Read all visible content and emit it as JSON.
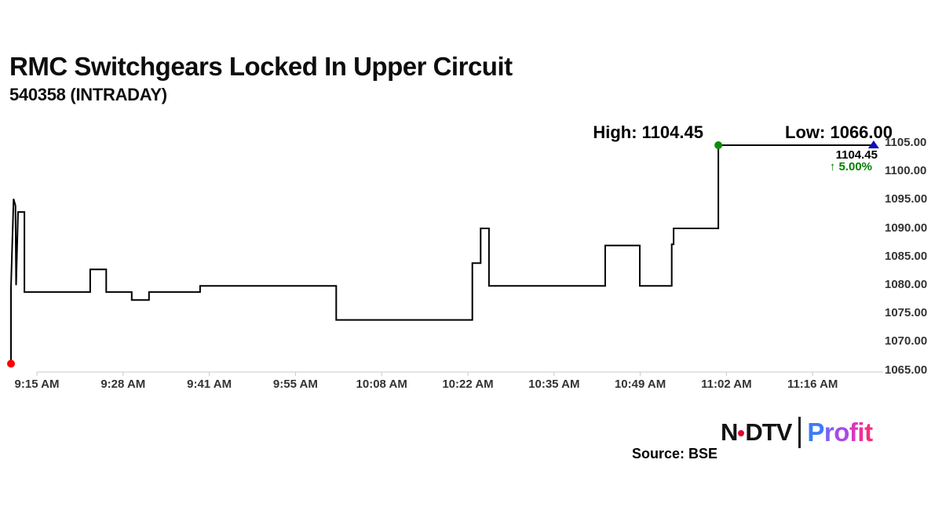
{
  "header": {
    "title": "RMC Switchgears Locked In Upper Circuit",
    "subtitle": "540358 (INTRADAY)"
  },
  "annotations": {
    "high_label": "High: 1104.45",
    "low_label": "Low: 1066.00",
    "last_price_label": "1104.45",
    "change_label": "↑ 5.00%"
  },
  "footer": {
    "source": "Source: BSE",
    "logo": {
      "ndtv_n": "N",
      "ndtv_dtv": "DTV",
      "profit_letters": [
        {
          "ch": "P",
          "color": "#3d7bf7"
        },
        {
          "ch": "r",
          "color": "#7a63f2"
        },
        {
          "ch": "o",
          "color": "#a94ae4"
        },
        {
          "ch": "f",
          "color": "#d838c0"
        },
        {
          "ch": "i",
          "color": "#ee2f9a"
        },
        {
          "ch": "t",
          "color": "#f42e7f"
        }
      ]
    }
  },
  "colors": {
    "price_line": "#000000",
    "open_marker_red": "#ff0000",
    "high_marker_green": "#0b8f0b",
    "last_marker_blue": "#0d0dbb",
    "change_green": "#008000",
    "axis_line_gray": "#c9c9c9",
    "axis_text_gray": "#333333"
  },
  "chart_data": {
    "type": "line",
    "title": "RMC Switchgears (540358) intraday price",
    "open_time": "9:15 AM",
    "time_base": "points are [minutes after 09:15 AM, price in INR]",
    "x_tick_labels": [
      "9:15 AM",
      "9:28 AM",
      "9:41 AM",
      "9:55 AM",
      "10:08 AM",
      "10:22 AM",
      "10:35 AM",
      "10:49 AM",
      "11:02 AM",
      "11:16 AM"
    ],
    "y_tick_labels": [
      "1105.00",
      "1100.00",
      "1095.00",
      "1090.00",
      "1085.00",
      "1080.00",
      "1075.00",
      "1070.00",
      "1065.00"
    ],
    "ylim": [
      1065,
      1105
    ],
    "high": 1104.45,
    "low": 1066.0,
    "last": 1104.45,
    "change_pct": 5.0,
    "upper_circuit": true,
    "series": [
      {
        "name": "price",
        "points": [
          [
            0,
            1066.0
          ],
          [
            0,
            1079.5
          ],
          [
            0.4,
            1095.0
          ],
          [
            0.7,
            1093.8
          ],
          [
            0.8,
            1079.8
          ],
          [
            1.1,
            1092.7
          ],
          [
            2.1,
            1092.7
          ],
          [
            2.1,
            1078.6
          ],
          [
            12.4,
            1078.6
          ],
          [
            12.4,
            1082.6
          ],
          [
            14.9,
            1082.6
          ],
          [
            14.9,
            1078.6
          ],
          [
            18.9,
            1078.6
          ],
          [
            18.9,
            1077.2
          ],
          [
            21.6,
            1077.2
          ],
          [
            21.6,
            1078.6
          ],
          [
            29.6,
            1078.6
          ],
          [
            29.6,
            1079.7
          ],
          [
            50.9,
            1079.7
          ],
          [
            50.9,
            1073.7
          ],
          [
            72.2,
            1073.7
          ],
          [
            72.2,
            1083.7
          ],
          [
            73.5,
            1083.7
          ],
          [
            73.5,
            1089.8
          ],
          [
            74.8,
            1089.8
          ],
          [
            74.8,
            1079.7
          ],
          [
            93.0,
            1079.7
          ],
          [
            93.0,
            1086.8
          ],
          [
            98.4,
            1086.8
          ],
          [
            98.4,
            1079.7
          ],
          [
            103.4,
            1079.7
          ],
          [
            103.4,
            1087.0
          ],
          [
            103.7,
            1087.0
          ],
          [
            103.7,
            1089.8
          ],
          [
            110.7,
            1089.8
          ],
          [
            110.7,
            1104.45
          ],
          [
            135,
            1104.45
          ]
        ]
      }
    ],
    "markers": [
      {
        "name": "open-low-marker",
        "shape": "circle",
        "m": 0,
        "p": 1066.0,
        "color": "#ff0000"
      },
      {
        "name": "high-marker",
        "shape": "circle",
        "m": 110.7,
        "p": 1104.45,
        "color": "#0b8f0b"
      },
      {
        "name": "last-marker",
        "shape": "triangle",
        "m": 135,
        "p": 1104.45,
        "color": "#0d0dbb"
      }
    ],
    "legend": null,
    "grid": false
  }
}
